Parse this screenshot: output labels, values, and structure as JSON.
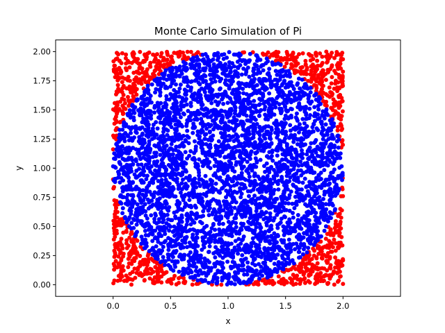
{
  "chart_data": {
    "type": "scatter",
    "title": "Monte Carlo Simulation of Pi",
    "xlabel": "x",
    "ylabel": "y",
    "xlim": [
      -0.5,
      2.5
    ],
    "ylim": [
      -0.1,
      2.1
    ],
    "xticks": [
      0.0,
      0.5,
      1.0,
      1.5,
      2.0
    ],
    "xtick_labels": [
      "0.0",
      "0.5",
      "1.0",
      "1.5",
      "2.0"
    ],
    "yticks": [
      0.0,
      0.25,
      0.5,
      0.75,
      1.0,
      1.25,
      1.5,
      1.75,
      2.0
    ],
    "ytick_labels": [
      "0.00",
      "0.25",
      "0.50",
      "0.75",
      "1.00",
      "1.25",
      "1.50",
      "1.75",
      "2.00"
    ],
    "grid": false,
    "circle": {
      "center": [
        1.0,
        1.0
      ],
      "radius": 1.0
    },
    "sampling_region": {
      "x": [
        0.0,
        2.0
      ],
      "y": [
        0.0,
        2.0
      ]
    },
    "series": [
      {
        "category": "inside",
        "color": "#0000ff"
      },
      {
        "category": "outside",
        "color": "#ff0000"
      }
    ]
  }
}
